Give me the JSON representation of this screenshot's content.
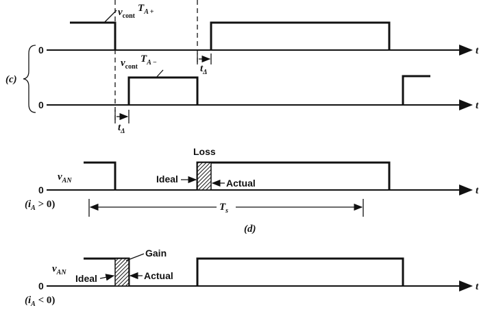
{
  "panel_c": {
    "label": "(c)",
    "zero_top": "0",
    "zero_bottom": "0",
    "t_top": "t",
    "t_bottom": "t",
    "vcont_plus": {
      "v": "v",
      "sub": "cont",
      "T": "T",
      "sub2": "A +"
    },
    "vcont_minus": {
      "v": "v",
      "sub": "cont",
      "T": "T",
      "sub2": "A −"
    },
    "tdelta_right": {
      "t": "t",
      "sub": "Δ"
    },
    "tdelta_left": {
      "t": "t",
      "sub": "Δ"
    }
  },
  "panel_d": {
    "label": "(d)",
    "vAN": {
      "v": "v",
      "sub": "AN"
    },
    "zero": "0",
    "t": "t",
    "loss": "Loss",
    "ideal": "Ideal",
    "actual": "Actual",
    "condition": "(i",
    "condition_sub": "A",
    "condition_rest": " > 0)",
    "Ts": {
      "T": "T",
      "sub": "s"
    }
  },
  "panel_e": {
    "vAN": {
      "v": "v",
      "sub": "AN"
    },
    "zero": "0",
    "t": "t",
    "gain": "Gain",
    "ideal": "Ideal",
    "actual": "Actual",
    "condition": "(i",
    "condition_sub": "A",
    "condition_rest": " < 0)"
  }
}
